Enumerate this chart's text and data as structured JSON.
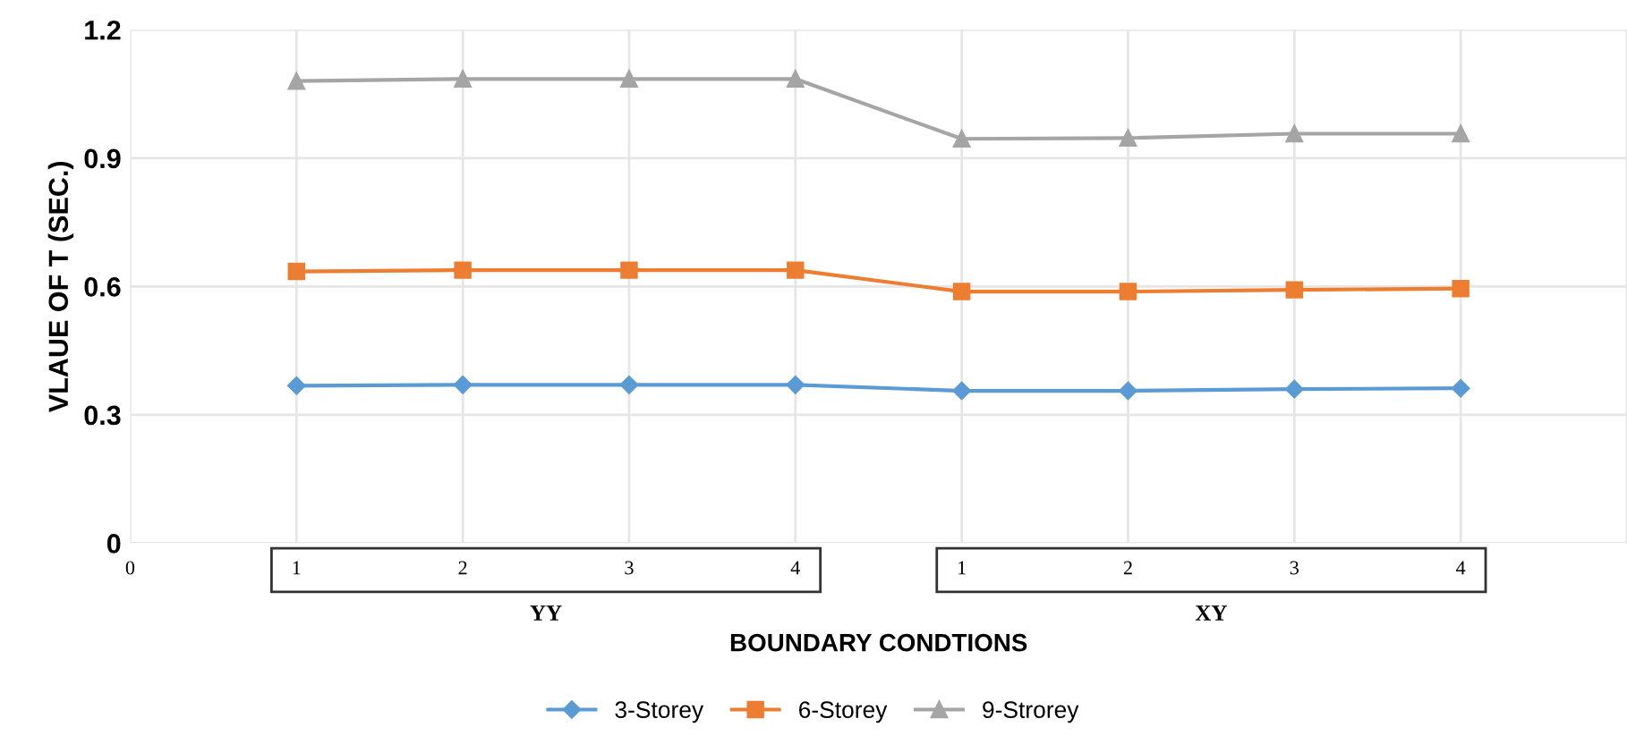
{
  "chart_data": {
    "type": "line",
    "xlabel": "BOUNDARY CONDTIONS",
    "ylabel": "VLAUE OF T (SEC.)",
    "categories": [
      "0",
      "1",
      "2",
      "3",
      "4",
      "1",
      "2",
      "3",
      "4",
      null
    ],
    "series": [
      {
        "name": "3-Storey",
        "color": "#5b9bd5",
        "marker": "diamond",
        "values": [
          null,
          0.368,
          0.37,
          0.37,
          0.37,
          0.356,
          0.356,
          0.36,
          0.362,
          null
        ]
      },
      {
        "name": "6-Storey",
        "color": "#ed7d31",
        "marker": "square",
        "values": [
          null,
          0.635,
          0.638,
          0.638,
          0.638,
          0.588,
          0.588,
          0.592,
          0.595,
          null
        ]
      },
      {
        "name": "9-Strorey",
        "color": "#a5a5a5",
        "marker": "triangle",
        "values": [
          null,
          1.08,
          1.085,
          1.085,
          1.085,
          0.945,
          0.947,
          0.957,
          0.957,
          null
        ]
      }
    ],
    "ylim": [
      0,
      1.2
    ],
    "yticks": [
      0,
      0.3,
      0.6,
      0.9,
      1.2
    ],
    "annotations": [
      "YY",
      "XY"
    ],
    "grid": true,
    "legend": "bottom"
  }
}
